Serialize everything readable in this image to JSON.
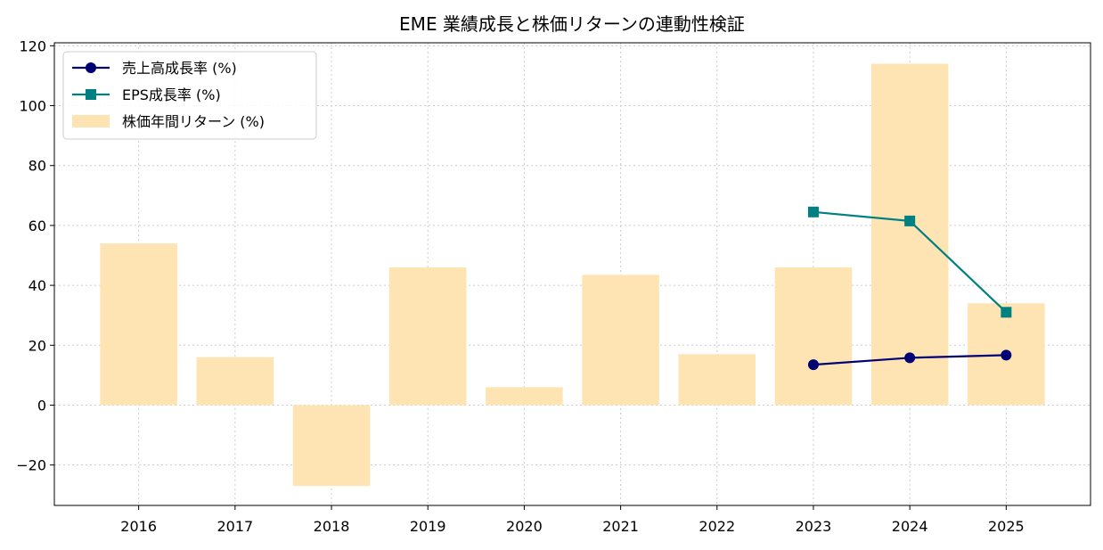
{
  "chart_data": {
    "type": "bar",
    "title": "EME 業績成長と株価リターンの連動性検証",
    "xlabel": "",
    "ylabel": "",
    "categories": [
      "2016",
      "2017",
      "2018",
      "2019",
      "2020",
      "2021",
      "2022",
      "2023",
      "2024",
      "2025"
    ],
    "ylim": [
      -33.5,
      121
    ],
    "yticks": [
      -20,
      0,
      20,
      40,
      60,
      80,
      100,
      120
    ],
    "ytick_labels": [
      "−20",
      "0",
      "20",
      "40",
      "60",
      "80",
      "100",
      "120"
    ],
    "grid": true,
    "legend_position": "top-left",
    "bars": {
      "name": "株価年間リターン (%)",
      "color": "#ffe4b3",
      "values": [
        54,
        16,
        -27,
        46,
        6,
        43.5,
        17,
        46,
        114,
        34
      ]
    },
    "series": [
      {
        "name": "売上高成長率 (%)",
        "color": "#000075",
        "marker": "circle",
        "values": [
          null,
          null,
          null,
          null,
          null,
          null,
          null,
          13.5,
          15.8,
          16.7
        ]
      },
      {
        "name": "EPS成長率 (%)",
        "color": "#008080",
        "marker": "square",
        "values": [
          null,
          null,
          null,
          null,
          null,
          null,
          null,
          64.5,
          61.5,
          31
        ]
      }
    ]
  }
}
